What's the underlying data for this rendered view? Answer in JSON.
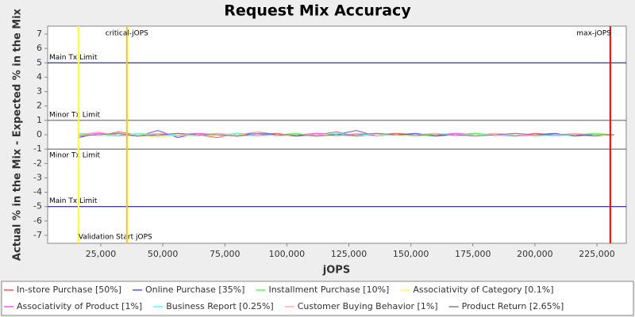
{
  "chart_data": {
    "type": "line",
    "title": "Request Mix Accuracy",
    "x_label": "jOPS",
    "y_label": "Actual % in the Mix - Expected % in the Mix",
    "xlim": [
      3560,
      236840
    ],
    "ylim": [
      -7.55,
      7.55
    ],
    "xticks": [
      {
        "value": 25000,
        "label": "25,000"
      },
      {
        "value": 50000,
        "label": "50,000"
      },
      {
        "value": 75000,
        "label": "75,000"
      },
      {
        "value": 100000,
        "label": "100,000"
      },
      {
        "value": 125000,
        "label": "125,000"
      },
      {
        "value": 150000,
        "label": "150,000"
      },
      {
        "value": 175000,
        "label": "175,000"
      },
      {
        "value": 200000,
        "label": "200,000"
      },
      {
        "value": 225000,
        "label": "225,000"
      }
    ],
    "yticks": [
      -7,
      -6,
      -5,
      -4,
      -3,
      -2,
      -1,
      0,
      1,
      2,
      3,
      4,
      5,
      6,
      7
    ],
    "reference_lines": [
      {
        "value": 5,
        "label": "Main Tx Limit",
        "color": "#000080"
      },
      {
        "value": 1,
        "label": "Minor Tx Limit",
        "color": "#555555"
      },
      {
        "value": -1,
        "label": "Minor Tx Limit",
        "color": "#555555"
      },
      {
        "value": -5,
        "label": "Main Tx Limit",
        "color": "#000080"
      }
    ],
    "markers": [
      {
        "value": 16000,
        "label": "Validation Start jOPS",
        "color": "#ffff33"
      },
      {
        "value": 35500,
        "label": "critical-jOPS",
        "color": "#ffc800"
      },
      {
        "value": 230400,
        "label": "max-jOPS",
        "color": "#ff0000"
      }
    ],
    "x": [
      16000,
      24000,
      32000,
      40000,
      48000,
      56000,
      64000,
      72000,
      80000,
      88000,
      96000,
      104000,
      112000,
      120000,
      128000,
      136000,
      144000,
      152000,
      160000,
      168000,
      176000,
      184000,
      192000,
      200000,
      208000,
      216000,
      224000,
      232000
    ],
    "series": [
      {
        "name": "In-store Purchase [50%]",
        "color": "#ff5555",
        "values": [
          0.1,
          -0.1,
          0.2,
          0,
          -0.1,
          0.1,
          0,
          -0.2,
          0.1,
          0,
          0.1,
          -0.1,
          0,
          0.2,
          -0.1,
          0,
          0.1,
          0,
          -0.1,
          0.1,
          0,
          0,
          -0.1,
          0.1,
          0,
          0,
          -0.1,
          0
        ]
      },
      {
        "name": "Online Purchase [35%]",
        "color": "#5555ff",
        "values": [
          -0.2,
          0.1,
          0,
          -0.1,
          0.3,
          -0.2,
          0.1,
          0,
          -0.1,
          0.2,
          0,
          -0.1,
          0.1,
          0,
          0.3,
          -0.1,
          0,
          0.1,
          -0.1,
          0,
          0.1,
          -0.1,
          0,
          0,
          0.1,
          -0.1,
          0,
          0
        ]
      },
      {
        "name": "Installment Purchase [10%]",
        "color": "#55ff55",
        "values": [
          0.1,
          0,
          -0.1,
          0.1,
          0,
          -0.1,
          0,
          0.1,
          0,
          -0.1,
          0,
          0.1,
          -0.1,
          0,
          0,
          0.1,
          0,
          -0.1,
          0,
          0,
          0.1,
          0,
          0,
          -0.1,
          0,
          0,
          0.1,
          0
        ]
      },
      {
        "name": "Associativity of Category [0.1%]",
        "color": "#ffff55",
        "values": [
          0,
          -0.1,
          0.1,
          0,
          -0.2,
          0,
          0.1,
          -0.1,
          0,
          0,
          -0.1,
          0,
          0.1,
          -0.1,
          0,
          0,
          -0.1,
          0,
          0,
          0.1,
          0,
          -0.1,
          0,
          0,
          0,
          0,
          0,
          -0.1
        ]
      },
      {
        "name": "Associativity of Product [1%]",
        "color": "#ff55ff",
        "values": [
          0,
          0.1,
          0,
          -0.1,
          0,
          0,
          0.1,
          0,
          -0.1,
          0,
          0,
          0,
          0.1,
          0,
          -0.1,
          0,
          0,
          0,
          0,
          0.1,
          0,
          0,
          -0.1,
          0,
          0,
          0,
          0,
          0
        ]
      },
      {
        "name": "Business Report [0.25%]",
        "color": "#55ffff",
        "values": [
          0.1,
          0,
          0,
          0.1,
          -0.1,
          0,
          0,
          0,
          0.1,
          -0.1,
          0,
          0,
          0,
          0.1,
          0,
          -0.1,
          0,
          0,
          0.1,
          0,
          0,
          0,
          0,
          0,
          -0.1,
          0,
          0,
          0
        ]
      },
      {
        "name": "Customer Buying Behavior [1%]",
        "color": "#ffafaf",
        "values": [
          0,
          0.2,
          -0.1,
          0,
          0.1,
          0,
          -0.1,
          0.1,
          0,
          0.2,
          -0.1,
          0,
          0,
          -0.1,
          0.1,
          0,
          0,
          0,
          0.1,
          -0.1,
          0,
          0.1,
          0,
          0,
          0,
          0.1,
          0,
          0
        ]
      },
      {
        "name": "Product Return [2.65%]",
        "color": "#808080",
        "values": [
          -0.1,
          0,
          0.1,
          -0.1,
          0,
          0.1,
          0,
          0,
          -0.1,
          0.1,
          0,
          0,
          -0.1,
          0,
          0,
          0.1,
          0,
          0,
          0,
          0,
          -0.1,
          0,
          0.1,
          0,
          0,
          0,
          0,
          0
        ]
      }
    ]
  }
}
